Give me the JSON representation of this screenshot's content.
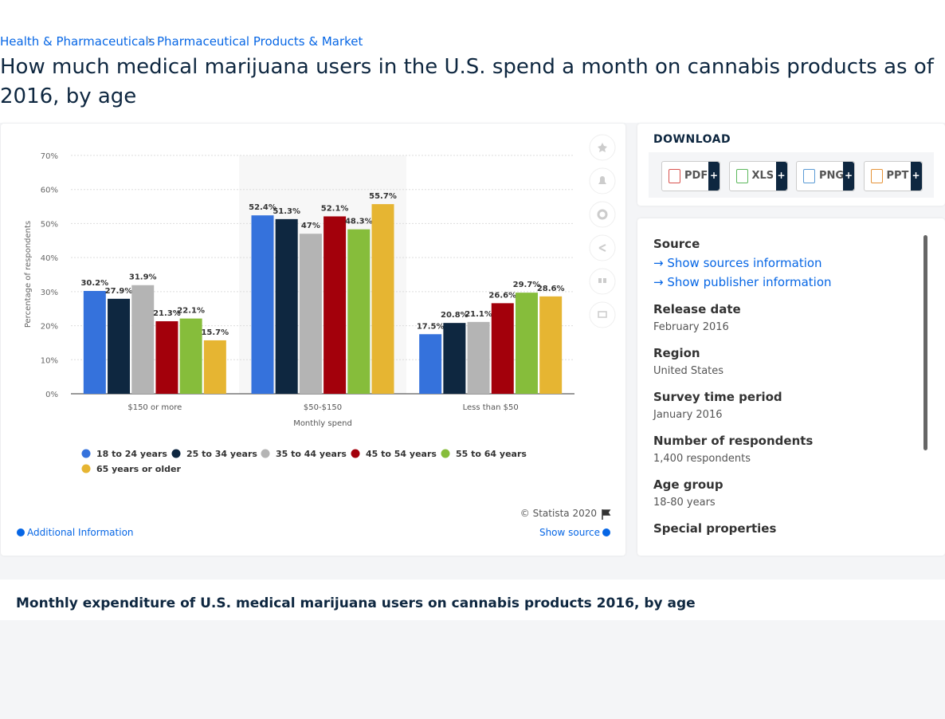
{
  "breadcrumb": [
    "Health & Pharmaceuticals",
    "Pharmaceutical Products & Market"
  ],
  "title": "How much medical marijuana users in the U.S. spend a month on cannabis products as of 2016, by age",
  "chart_data": {
    "type": "bar",
    "categories": [
      "$150 or more",
      "$50-$150",
      "Less than $50"
    ],
    "series": [
      {
        "name": "18 to 24 years",
        "color": "#3572dc",
        "values": [
          30.2,
          52.4,
          17.5
        ],
        "value_labels": [
          "30.2%",
          "52.4%",
          "17.5%"
        ]
      },
      {
        "name": "25 to 34 years",
        "color": "#0e2740",
        "values": [
          27.9,
          51.3,
          20.8
        ],
        "value_labels": [
          "27.9%",
          "51.3%",
          "20.8%"
        ]
      },
      {
        "name": "35 to 44 years",
        "color": "#b4b4b4",
        "values": [
          31.9,
          47,
          21.1
        ],
        "value_labels": [
          "31.9%",
          "47%",
          "21.1%"
        ]
      },
      {
        "name": "45 to 54 years",
        "color": "#a3000b",
        "values": [
          21.3,
          52.1,
          26.6
        ],
        "value_labels": [
          "21.3%",
          "52.1%",
          "26.6%"
        ]
      },
      {
        "name": "55 to 64 years",
        "color": "#86bd3b",
        "values": [
          22.1,
          48.3,
          29.7
        ],
        "value_labels": [
          "22.1%",
          "48.3%",
          "29.7%"
        ]
      },
      {
        "name": "65 years or older",
        "color": "#e6b532",
        "values": [
          15.7,
          55.7,
          28.6
        ],
        "value_labels": [
          "15.7%",
          "55.7%",
          "28.6%"
        ]
      }
    ],
    "ylim": [
      0,
      70
    ],
    "yticks": [
      {
        "value": 0,
        "label": "0%"
      },
      {
        "value": 10,
        "label": "10%"
      },
      {
        "value": 20,
        "label": "20%"
      },
      {
        "value": 30,
        "label": "30%"
      },
      {
        "value": 40,
        "label": "40%"
      },
      {
        "value": 50,
        "label": "50%"
      },
      {
        "value": 60,
        "label": "60%"
      },
      {
        "value": 70,
        "label": "70%"
      }
    ],
    "y_label": "Percentage of respondents",
    "x_label": "Monthly spend",
    "grid": true,
    "legend": "bottom"
  },
  "credit": "© Statista 2020",
  "additional_info": "Additional Information",
  "show_source": "Show source",
  "download": {
    "heading": "DOWNLOAD",
    "buttons": [
      "PDF",
      "XLS",
      "PNG",
      "PPT"
    ],
    "plus": "+"
  },
  "source": {
    "label": "Source",
    "links": [
      "Show sources information",
      "Show publisher information"
    ]
  },
  "details": [
    {
      "label": "Release date",
      "value": "February 2016"
    },
    {
      "label": "Region",
      "value": "United States"
    },
    {
      "label": "Survey time period",
      "value": "January 2016"
    },
    {
      "label": "Number of respondents",
      "value": "1,400 respondents"
    },
    {
      "label": "Age group",
      "value": "18-80 years"
    },
    {
      "label": "Special properties"
    }
  ],
  "footer_title": "Monthly expenditure of U.S. medical marijuana users on cannabis products 2016, by age"
}
